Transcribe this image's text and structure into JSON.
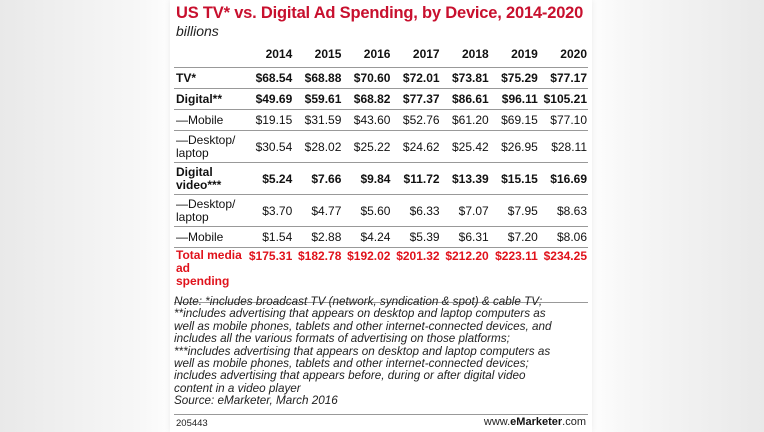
{
  "title": "US TV* vs. Digital Ad Spending, by Device, 2014-2020",
  "subtitle": "billions",
  "chart_data": {
    "type": "table",
    "title": "US TV* vs. Digital Ad Spending, by Device, 2014-2020",
    "subtitle": "billions",
    "columns": [
      "2014",
      "2015",
      "2016",
      "2017",
      "2018",
      "2019",
      "2020"
    ],
    "rows": [
      {
        "label": "TV*",
        "style": "bold",
        "values": [
          "$68.54",
          "$68.88",
          "$70.60",
          "$72.01",
          "$73.81",
          "$75.29",
          "$77.17"
        ]
      },
      {
        "label": "Digital**",
        "style": "bold",
        "values": [
          "$49.69",
          "$59.61",
          "$68.82",
          "$77.37",
          "$86.61",
          "$96.11",
          "$105.21"
        ]
      },
      {
        "label": "—Mobile",
        "style": "normal",
        "values": [
          "$19.15",
          "$31.59",
          "$43.60",
          "$52.76",
          "$61.20",
          "$69.15",
          "$77.10"
        ]
      },
      {
        "label": "—Desktop/ laptop",
        "style": "normal",
        "values": [
          "$30.54",
          "$28.02",
          "$25.22",
          "$24.62",
          "$25.42",
          "$26.95",
          "$28.11"
        ]
      },
      {
        "label": "Digital video***",
        "style": "bold",
        "values": [
          "$5.24",
          "$7.66",
          "$9.84",
          "$11.72",
          "$13.39",
          "$15.15",
          "$16.69"
        ]
      },
      {
        "label": "—Desktop/ laptop",
        "style": "normal",
        "values": [
          "$3.70",
          "$4.77",
          "$5.60",
          "$6.33",
          "$7.07",
          "$7.95",
          "$8.63"
        ]
      },
      {
        "label": "—Mobile",
        "style": "normal",
        "values": [
          "$1.54",
          "$2.88",
          "$4.24",
          "$5.39",
          "$6.31",
          "$7.20",
          "$8.06"
        ]
      },
      {
        "label": "Total media ad spending",
        "style": "red",
        "values": [
          "$175.31",
          "$182.78",
          "$192.02",
          "$201.32",
          "$212.20",
          "$223.11",
          "$234.25"
        ]
      }
    ]
  },
  "note_lines": [
    "Note: *includes broadcast TV (network, syndication & spot) & cable TV;",
    "**includes advertising that appears on desktop and laptop computers as",
    "well as mobile phones, tablets and other internet-connected devices, and",
    "includes all the various formats of advertising on those platforms;",
    "***includes advertising that appears on desktop and laptop computers as",
    "well as mobile phones, tablets and other internet-connected devices;",
    "includes advertising that appears before, during or after digital video",
    "content in a video player",
    "Source: eMarketer, March 2016"
  ],
  "footer": {
    "chart_id": "205443",
    "brand_prefix": "www.",
    "brand_name": "eMarketer",
    "brand_suffix": ".com"
  }
}
